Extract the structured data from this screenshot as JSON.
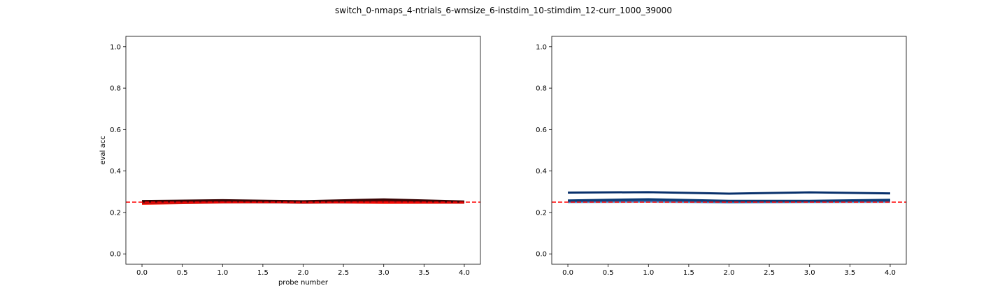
{
  "figure": {
    "suptitle": "switch_0-nmaps_4-ntrials_6-wmsize_6-instdim_10-stimdim_12-curr_1000_39000"
  },
  "chart_data": [
    {
      "type": "line",
      "xlabel": "probe number",
      "ylabel": "eval acc",
      "xlim": [
        -0.2,
        4.2
      ],
      "ylim": [
        -0.05,
        1.05
      ],
      "xticks": [
        "0.0",
        "0.5",
        "1.0",
        "1.5",
        "2.0",
        "2.5",
        "3.0",
        "3.5",
        "4.0"
      ],
      "yticks": [
        "0.0",
        "0.2",
        "0.4",
        "0.6",
        "0.8",
        "1.0"
      ],
      "grid": false,
      "reference_line": {
        "y": 0.25,
        "color": "#ff0000",
        "style": "dashed"
      },
      "x": [
        0,
        1,
        2,
        3,
        4
      ],
      "series": [
        {
          "values": [
            0.242,
            0.248,
            0.25,
            0.246,
            0.247
          ],
          "color": "#ff2a1a",
          "width": 3
        },
        {
          "values": [
            0.248,
            0.252,
            0.247,
            0.25,
            0.248
          ],
          "color": "#e3130f",
          "width": 3
        },
        {
          "values": [
            0.246,
            0.25,
            0.248,
            0.253,
            0.249
          ],
          "color": "#b40a0a",
          "width": 3
        },
        {
          "values": [
            0.252,
            0.256,
            0.251,
            0.258,
            0.251
          ],
          "color": "#7c0808",
          "width": 3
        },
        {
          "values": [
            0.255,
            0.259,
            0.254,
            0.263,
            0.253
          ],
          "color": "#3a0404",
          "width": 3
        }
      ]
    },
    {
      "type": "line",
      "xlabel": "",
      "ylabel": "",
      "xlim": [
        -0.2,
        4.2
      ],
      "ylim": [
        -0.05,
        1.05
      ],
      "xticks": [
        "0.0",
        "0.5",
        "1.0",
        "1.5",
        "2.0",
        "2.5",
        "3.0",
        "3.5",
        "4.0"
      ],
      "yticks": [
        "0.0",
        "0.2",
        "0.4",
        "0.6",
        "0.8",
        "1.0"
      ],
      "grid": false,
      "reference_line": {
        "y": 0.25,
        "color": "#ff0000",
        "style": "dashed"
      },
      "x": [
        0,
        1,
        2,
        3,
        4
      ],
      "series": [
        {
          "values": [
            0.25,
            0.252,
            0.248,
            0.25,
            0.251
          ],
          "color": "#6fa8dc",
          "width": 3
        },
        {
          "values": [
            0.252,
            0.255,
            0.25,
            0.252,
            0.254
          ],
          "color": "#3d7fc0",
          "width": 3
        },
        {
          "values": [
            0.255,
            0.26,
            0.253,
            0.254,
            0.257
          ],
          "color": "#1f5a9a",
          "width": 3
        },
        {
          "values": [
            0.258,
            0.264,
            0.256,
            0.256,
            0.261
          ],
          "color": "#0d3b75",
          "width": 3
        },
        {
          "values": [
            0.296,
            0.298,
            0.291,
            0.297,
            0.292
          ],
          "color": "#08306b",
          "width": 3
        }
      ]
    }
  ]
}
